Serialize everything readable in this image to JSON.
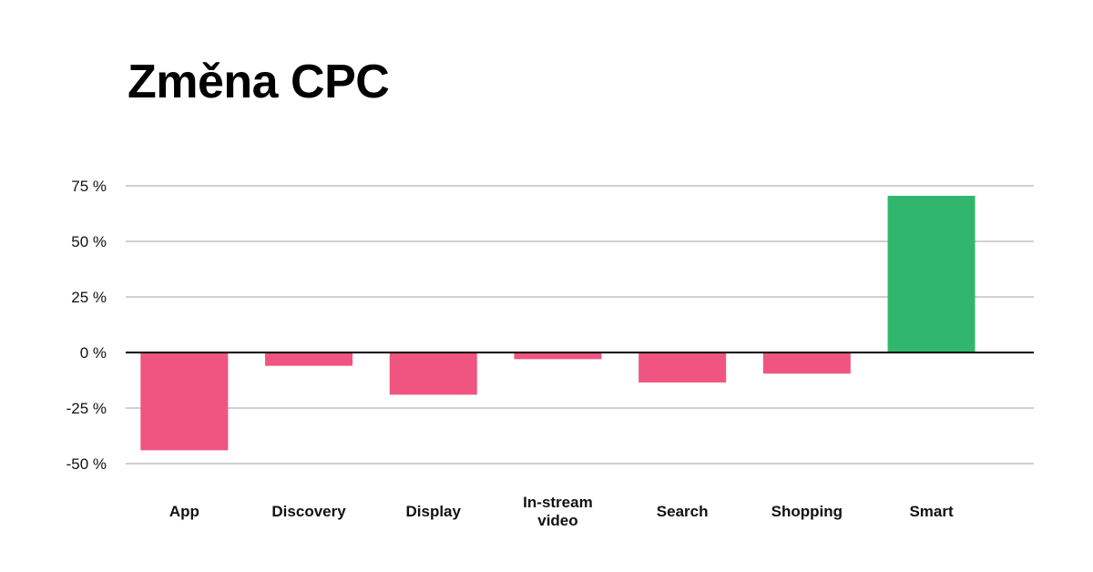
{
  "chart_data": {
    "type": "bar",
    "title": "Změna CPC",
    "xlabel": "",
    "ylabel": "",
    "categories": [
      "App",
      "Discovery",
      "Display",
      "In-stream video",
      "Search",
      "Shopping",
      "Smart"
    ],
    "category_lines": [
      [
        "App"
      ],
      [
        "Discovery"
      ],
      [
        "Display"
      ],
      [
        "In-stream",
        "video"
      ],
      [
        "Search"
      ],
      [
        "Shopping"
      ],
      [
        "Smart"
      ]
    ],
    "values": [
      -44,
      -6,
      -19,
      -3,
      -13.5,
      -9.5,
      70.5
    ],
    "ylim": [
      -50,
      75
    ],
    "yticks": [
      75,
      50,
      25,
      0,
      -25,
      -50
    ],
    "ytick_labels": [
      "75 %",
      "50 %",
      "25 %",
      "0 %",
      "-25 %",
      "-50 %"
    ],
    "grid": true,
    "legend": "none",
    "colors": {
      "negative": "#ef5580",
      "positive": "#31b76d",
      "grid": "#d0d0d0",
      "zero_line": "#000000"
    }
  }
}
